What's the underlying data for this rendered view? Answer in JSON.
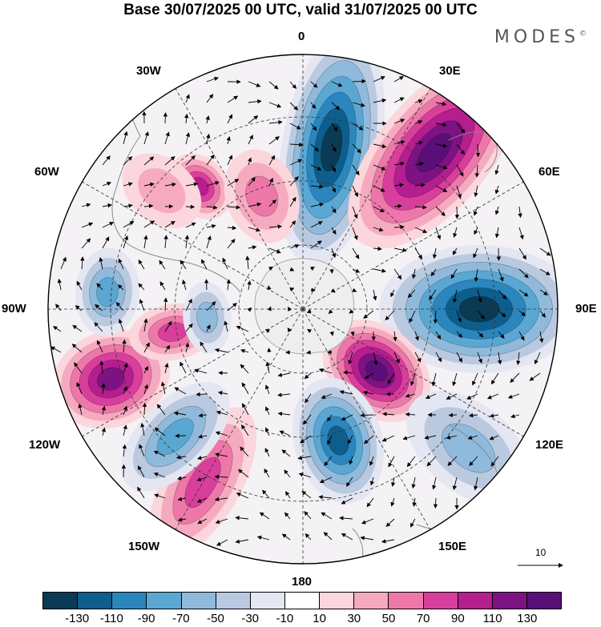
{
  "title": "Base 30/07/2025 00 UTC, valid 31/07/2025 00 UTC",
  "brand": "MODES",
  "brand_mark": "©",
  "longitude_labels": {
    "lon_0": "0",
    "lon_30e": "30E",
    "lon_60e": "60E",
    "lon_90e": "90E",
    "lon_120e": "120E",
    "lon_150e": "150E",
    "lon_180": "180",
    "lon_150w": "150W",
    "lon_120w": "120W",
    "lon_90w": "90W",
    "lon_60w": "60W",
    "lon_30w": "30W"
  },
  "vector_reference": {
    "label": "10"
  },
  "colorbar": {
    "colors": [
      "#0b3a55",
      "#0d5e8c",
      "#2a86bd",
      "#5aa7d3",
      "#8fbadc",
      "#b9c9e0",
      "#e4e6f2",
      "#ffffff",
      "#fbd6dc",
      "#f6aabf",
      "#ee77aa",
      "#d83e9b",
      "#b41e8e",
      "#7d1283",
      "#5a0f78"
    ],
    "tick_labels": [
      "-130",
      "-110",
      "-90",
      "-70",
      "-50",
      "-30",
      "-10",
      "10",
      "30",
      "50",
      "70",
      "90",
      "110",
      "130"
    ]
  },
  "chart_data": {
    "type": "heatmap",
    "projection": "south polar stereographic",
    "title": "Base 30/07/2025 00 UTC, valid 31/07/2025 00 UTC",
    "field_units": "anomaly levels -130 to 130 by 20",
    "levels": [
      -130,
      -110,
      -90,
      -70,
      -50,
      -30,
      -10,
      10,
      30,
      50,
      70,
      90,
      110,
      130
    ],
    "wind_vectors": true,
    "reference_vector": 10,
    "anomaly_centers": [
      {
        "lon": 10,
        "value": -130
      },
      {
        "lon": 40,
        "value": 130
      },
      {
        "lon": 90,
        "value": -130
      },
      {
        "lon": 130,
        "value": 130
      },
      {
        "lon": 130,
        "value": -50
      },
      {
        "lon": 165,
        "value": -110
      },
      {
        "lon": -150,
        "value": 70
      },
      {
        "lon": -135,
        "value": -70
      },
      {
        "lon": -110,
        "value": 110
      },
      {
        "lon": -100,
        "value": 70
      },
      {
        "lon": -85,
        "value": -70
      },
      {
        "lon": -95,
        "value": -50
      },
      {
        "lon": -40,
        "value": 90
      },
      {
        "lon": -20,
        "value": 50
      },
      {
        "lon": -50,
        "value": 30
      }
    ]
  }
}
